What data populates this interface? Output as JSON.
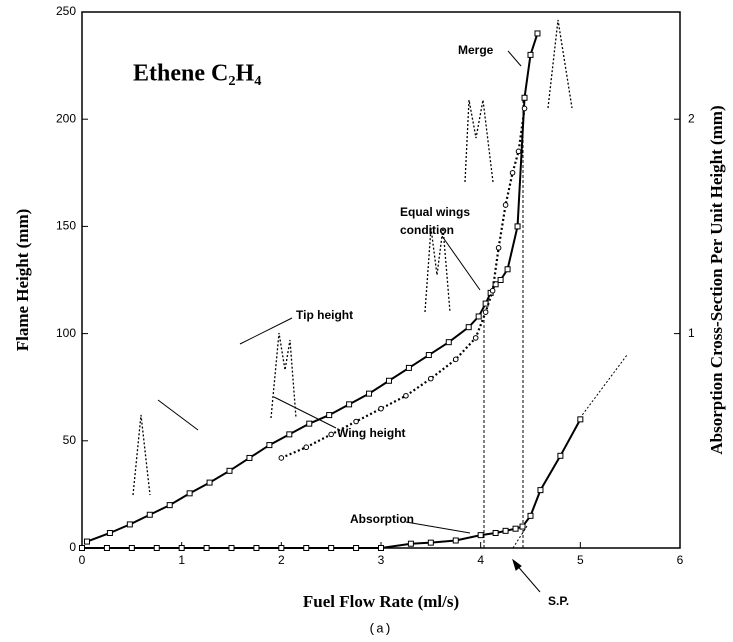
{
  "chart_data": {
    "type": "line",
    "title": "Ethene C₂H₄",
    "x_label": "Fuel Flow Rate (ml/s)",
    "y_label": "Flame Height (mm)",
    "y2_label": "Absorption Cross-Section Per Unit Height (mm)",
    "caption": "(a)",
    "annotations": [
      "Merge",
      "Equal wings",
      "condition",
      "Tip height",
      "Wing height",
      "Absorption",
      "S.P."
    ],
    "xlim": [
      0,
      6
    ],
    "xticks": [
      0,
      1,
      2,
      3,
      4,
      5,
      6
    ],
    "ylim": [
      0,
      250
    ],
    "yticks": [
      0,
      50,
      100,
      150,
      200,
      250
    ],
    "y2lim": [
      0,
      2.5
    ],
    "y2ticks": [
      1,
      2
    ],
    "grid": false,
    "series": [
      {
        "name": "Tip height",
        "color": "#000000",
        "marker": "square",
        "linestyle": "solid",
        "x": [
          0.05,
          0.28,
          0.48,
          0.68,
          0.88,
          1.08,
          1.28,
          1.48,
          1.68,
          1.88,
          2.08,
          2.28,
          2.48,
          2.68,
          2.88,
          3.08,
          3.28,
          3.48,
          3.68,
          3.88,
          3.98,
          4.05,
          4.1,
          4.15,
          4.2,
          4.27,
          4.37,
          4.44,
          4.5,
          4.57
        ],
        "values": [
          3,
          7,
          11,
          15.5,
          20,
          25.5,
          30.5,
          36,
          42,
          48,
          53,
          58,
          62,
          67,
          72,
          78,
          84,
          90,
          96,
          103,
          108,
          114,
          119,
          123,
          125,
          130,
          150,
          210,
          230,
          240
        ]
      },
      {
        "name": "Wing height",
        "color": "#000000",
        "marker": "circle",
        "linestyle": "dotted",
        "x": [
          2.0,
          2.25,
          2.5,
          2.75,
          3.0,
          3.25,
          3.5,
          3.75,
          3.95,
          4.05,
          4.12,
          4.18,
          4.25,
          4.32,
          4.38,
          4.44
        ],
        "values": [
          42,
          47,
          53,
          59,
          65,
          71,
          79,
          88,
          98,
          110,
          120,
          140,
          160,
          175,
          185,
          205
        ]
      },
      {
        "name": "Absorption",
        "color": "#000000",
        "marker": "square",
        "linestyle": "solid",
        "axis": "y2",
        "x": [
          0,
          0.25,
          0.5,
          0.75,
          1,
          1.25,
          1.5,
          1.75,
          2,
          2.25,
          2.5,
          2.75,
          3,
          3.3,
          3.5,
          3.75,
          4,
          4.15,
          4.25,
          4.35,
          4.42,
          4.5,
          4.6,
          4.8,
          5.0
        ],
        "values": [
          0,
          0,
          0,
          0,
          0,
          0,
          0,
          0,
          0,
          0,
          0,
          0,
          0,
          0.02,
          0.025,
          0.035,
          0.06,
          0.07,
          0.08,
          0.09,
          0.1,
          0.15,
          0.27,
          0.43,
          0.6
        ]
      }
    ]
  }
}
